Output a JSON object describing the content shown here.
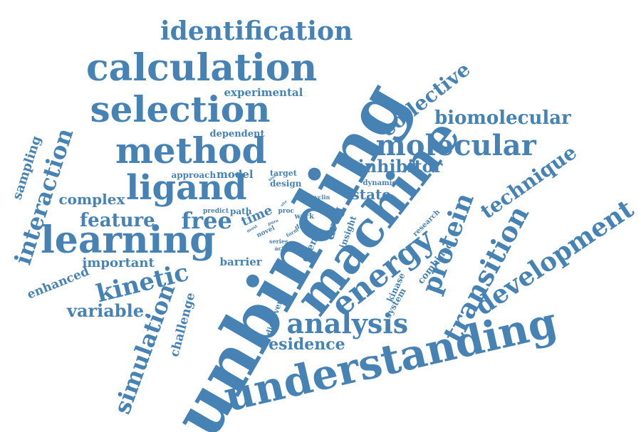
{
  "cloud": {
    "color": "#4682b4",
    "background": "#ffffff",
    "words": [
      {
        "text": "unbinding",
        "rank": 1,
        "orientation": "rotated"
      },
      {
        "text": "machine",
        "rank": 2,
        "orientation": "rotated"
      },
      {
        "text": "understanding",
        "rank": 3,
        "orientation": "rotated"
      },
      {
        "text": "calculation",
        "rank": 4,
        "orientation": "horizontal"
      },
      {
        "text": "learning",
        "rank": 5,
        "orientation": "horizontal"
      },
      {
        "text": "selection",
        "rank": 6,
        "orientation": "horizontal"
      },
      {
        "text": "method",
        "rank": 7,
        "orientation": "horizontal"
      },
      {
        "text": "ligand",
        "rank": 8,
        "orientation": "horizontal"
      },
      {
        "text": "energy",
        "rank": 9,
        "orientation": "rotated"
      },
      {
        "text": "identification",
        "rank": 10,
        "orientation": "horizontal"
      },
      {
        "text": "molecular",
        "rank": 11,
        "orientation": "horizontal"
      },
      {
        "text": "analysis",
        "rank": 12,
        "orientation": "horizontal"
      },
      {
        "text": "development",
        "rank": 13,
        "orientation": "rotated"
      },
      {
        "text": "transition",
        "rank": 14,
        "orientation": "rotated"
      },
      {
        "text": "protein",
        "rank": 15,
        "orientation": "rotated"
      },
      {
        "text": "simulation",
        "rank": 16,
        "orientation": "rotated"
      },
      {
        "text": "kinetic",
        "rank": 17,
        "orientation": "rotated"
      },
      {
        "text": "interaction",
        "rank": 18,
        "orientation": "rotated"
      },
      {
        "text": "collective",
        "rank": 19,
        "orientation": "rotated"
      },
      {
        "text": "biomolecular",
        "rank": 20,
        "orientation": "horizontal"
      },
      {
        "text": "free",
        "rank": 21,
        "orientation": "horizontal"
      },
      {
        "text": "technique",
        "rank": 22,
        "orientation": "rotated"
      },
      {
        "text": "feature",
        "rank": 23,
        "orientation": "horizontal"
      },
      {
        "text": "variable.",
        "rank": 24,
        "orientation": "horizontal"
      },
      {
        "text": "inhibitor",
        "rank": 25,
        "orientation": "horizontal"
      },
      {
        "text": "residence",
        "rank": 26,
        "orientation": "horizontal"
      },
      {
        "text": "complex",
        "rank": 27,
        "orientation": "horizontal"
      },
      {
        "text": "state",
        "rank": 28,
        "orientation": "horizontal"
      },
      {
        "text": "important",
        "rank": 29,
        "orientation": "horizontal"
      },
      {
        "text": "sampling",
        "rank": 30,
        "orientation": "rotated"
      },
      {
        "text": "enhanced",
        "rank": 31,
        "orientation": "rotated"
      },
      {
        "text": "challenge",
        "rank": 32,
        "orientation": "rotated"
      },
      {
        "text": "experimental",
        "rank": 33,
        "orientation": "horizontal"
      },
      {
        "text": "drug",
        "rank": 34,
        "orientation": "rotated"
      },
      {
        "text": "time",
        "rank": 35,
        "orientation": "rotated"
      },
      {
        "text": "combined",
        "rank": 36,
        "orientation": "rotated"
      },
      {
        "text": "barrier",
        "rank": 37,
        "orientation": "horizontal"
      },
      {
        "text": "model",
        "rank": 38,
        "orientation": "horizontal"
      },
      {
        "text": "dependent",
        "rank": 39,
        "orientation": "horizontal"
      },
      {
        "text": "approach",
        "rank": 40,
        "orientation": "horizontal"
      },
      {
        "text": "path",
        "rank": 41,
        "orientation": "horizontal"
      },
      {
        "text": "event",
        "rank": 42,
        "orientation": "rotated"
      },
      {
        "text": "insight",
        "rank": 43,
        "orientation": "rotated"
      },
      {
        "text": "kinase",
        "rank": 44,
        "orientation": "rotated"
      },
      {
        "text": "system",
        "rank": 45,
        "orientation": "rotated"
      },
      {
        "text": "discovery",
        "rank": 46,
        "orientation": "rotated"
      },
      {
        "text": "research",
        "rank": 47,
        "orientation": "rotated"
      },
      {
        "text": "design",
        "rank": 48,
        "orientation": "horizontal"
      },
      {
        "text": "target",
        "rank": 49,
        "orientation": "horizontal"
      },
      {
        "text": "dynamic",
        "rank": 50,
        "orientation": "horizontal"
      },
      {
        "text": "work",
        "rank": 51,
        "orientation": "horizontal"
      },
      {
        "text": "proc",
        "rank": 52,
        "orientation": "horizontal"
      },
      {
        "text": "data",
        "rank": 53,
        "orientation": "rotated"
      },
      {
        "text": "predict",
        "rank": 54,
        "orientation": "horizontal"
      },
      {
        "text": "novel",
        "rank": 55,
        "orientation": "rotated"
      },
      {
        "text": "series",
        "rank": 56,
        "orientation": "horizontal"
      },
      {
        "text": "active",
        "rank": 57,
        "orientation": "horizontal"
      },
      {
        "text": "cyclin",
        "rank": 58,
        "orientation": "horizontal"
      },
      {
        "text": "form",
        "rank": 59,
        "orientation": "rotated"
      },
      {
        "text": "most",
        "rank": 60,
        "orientation": "rotated"
      },
      {
        "text": "pure",
        "rank": 61,
        "orientation": "rotated"
      },
      {
        "text": "bind",
        "rank": 62,
        "orientation": "rotated"
      },
      {
        "text": "site",
        "rank": 63,
        "orientation": "rotated"
      }
    ]
  }
}
